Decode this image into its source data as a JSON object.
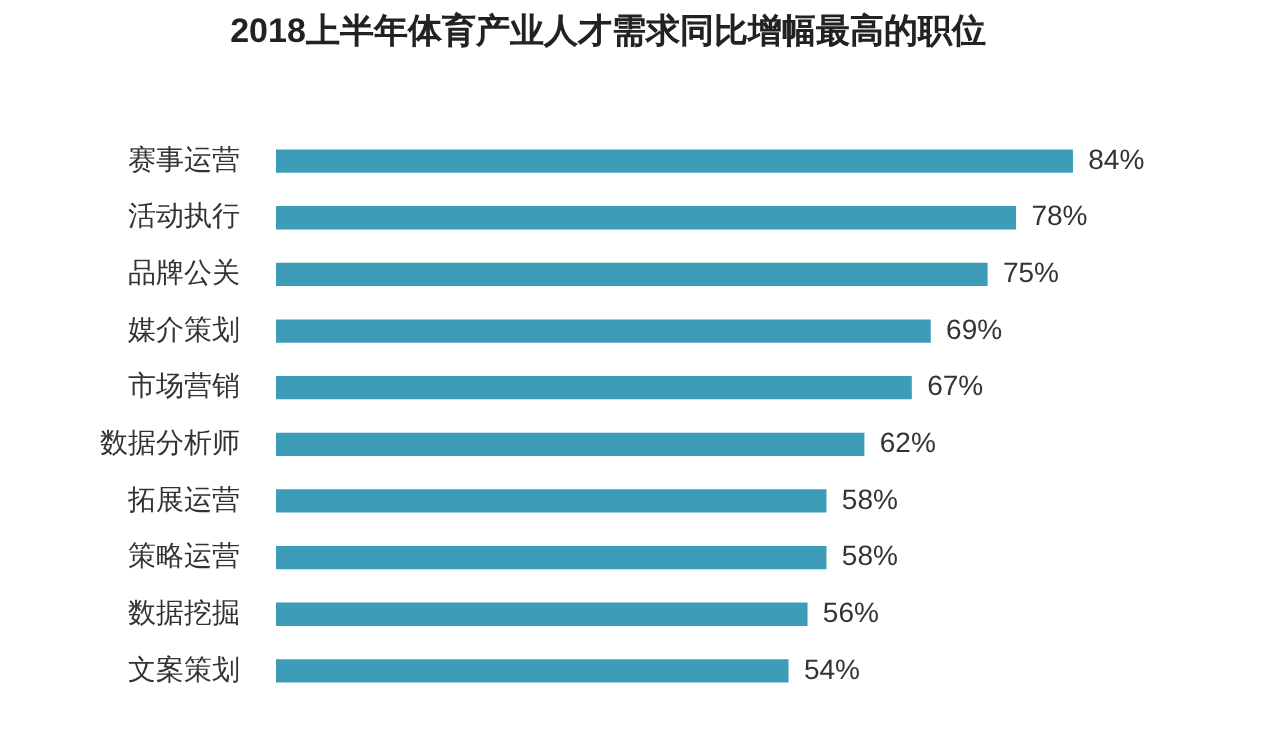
{
  "chart_data": {
    "type": "bar",
    "orientation": "horizontal",
    "title": "2018上半年体育产业人才需求同比增幅最高的职位",
    "categories": [
      "赛事运营",
      "活动执行",
      "品牌公关",
      "媒介策划",
      "市场营销",
      "数据分析师",
      "拓展运营",
      "策略运营",
      "数据挖掘",
      "文案策划"
    ],
    "values": [
      84,
      78,
      75,
      69,
      67,
      62,
      58,
      58,
      56,
      54
    ],
    "value_labels": [
      "84%",
      "78%",
      "75%",
      "69%",
      "67%",
      "62%",
      "58%",
      "58%",
      "56%",
      "54%"
    ],
    "color": "#3d9db8",
    "legend": false
  }
}
